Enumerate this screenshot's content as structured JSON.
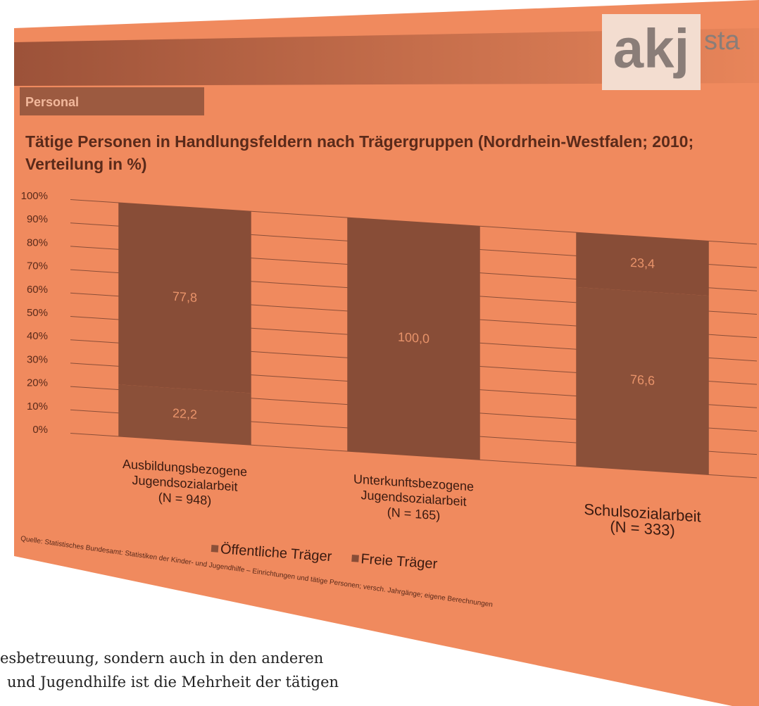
{
  "section": "Personal",
  "logo": "akj",
  "logo_suffix": "sta",
  "source": "Quelle: Statistisches Bundesamt: Statistiken der Kinder- und Jugendhilfe – Einrichtungen und tätige Personen; versch. Jahrgänge; eigene Berechnungen",
  "document": {
    "lines": [
      "esbetreuung, sondern auch in den anderen",
      "und Jugendhilfe ist die Mehrheit der tätigen"
    ]
  },
  "chart_data": {
    "type": "stacked_bar",
    "title": "Tätige Personen in Handlungsfeldern nach Trägergruppen (Nordrhein-Westfalen; 2010; Verteilung in %)",
    "categories": [
      [
        "Ausbildungsbezogene",
        "Jugendsozialarbeit",
        "(N = 948)"
      ],
      [
        "Unterkunftsbezogene",
        "Jugendsozialarbeit",
        "(N = 165)"
      ],
      [
        "Schulsozialarbeit",
        "(N = 333)"
      ]
    ],
    "series": [
      {
        "name": "Öffentliche Träger",
        "color": "#8b5039",
        "values": [
          22.2,
          0,
          76.6
        ],
        "value_labels": [
          "22,2",
          null,
          "76,6"
        ]
      },
      {
        "name": "Freie Träger",
        "color": "#884d37",
        "values": [
          77.8,
          100,
          23.4
        ],
        "value_labels": [
          "77,8",
          "100,0",
          "23,4"
        ]
      }
    ],
    "ylim": [
      0,
      100
    ],
    "yticks": [
      {
        "value": 0,
        "label": "0%"
      },
      {
        "value": 10,
        "label": "10%"
      },
      {
        "value": 20,
        "label": "20%"
      },
      {
        "value": 30,
        "label": "30%"
      },
      {
        "value": 40,
        "label": "40%"
      },
      {
        "value": 50,
        "label": "50%"
      },
      {
        "value": 60,
        "label": "60%"
      },
      {
        "value": 70,
        "label": "70%"
      },
      {
        "value": 80,
        "label": "80%"
      },
      {
        "value": 90,
        "label": "90%"
      },
      {
        "value": 100,
        "label": "100%"
      }
    ],
    "grid": true,
    "legend": "bottom"
  }
}
